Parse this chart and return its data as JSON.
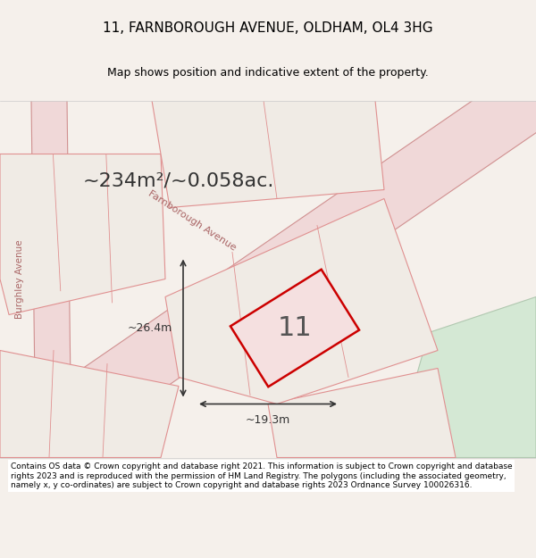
{
  "title": "11, FARNBOROUGH AVENUE, OLDHAM, OL4 3HG",
  "subtitle": "Map shows position and indicative extent of the property.",
  "area_text": "~234m²/~0.058ac.",
  "number_label": "11",
  "dim_width": "~19.3m",
  "dim_height": "~26.4m",
  "footer_text": "Contains OS data © Crown copyright and database right 2021. This information is subject to Crown copyright and database rights 2023 and is reproduced with the permission of HM Land Registry. The polygons (including the associated geometry, namely x, y co-ordinates) are subject to Crown copyright and database rights 2023 Ordnance Survey 100026316.",
  "bg_color": "#f5f0eb",
  "map_bg": "#f5f0eb",
  "road_color": "#f0c8c8",
  "road_outline": "#e08080",
  "property_fill": "#f5e8e8",
  "property_outline": "#cc0000",
  "green_area": "#d4e8d4",
  "road_bg": "#e8d8d8",
  "street_label": "Farnborough Avenue",
  "left_label": "Burghley Avenue"
}
